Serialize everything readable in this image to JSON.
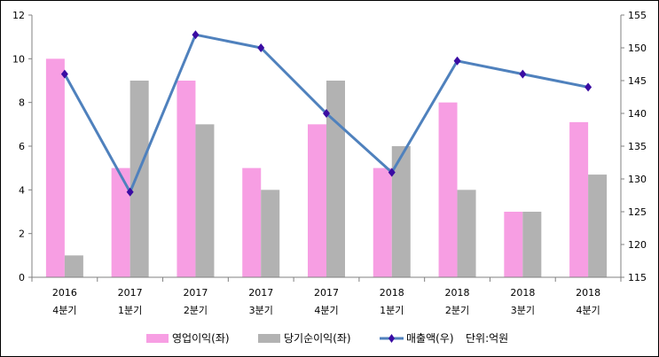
{
  "chart_data": {
    "type": "bar",
    "title": "",
    "categories": [
      [
        "2016",
        "4분기"
      ],
      [
        "2017",
        "1분기"
      ],
      [
        "2017",
        "2분기"
      ],
      [
        "2017",
        "3분기"
      ],
      [
        "2017",
        "4분기"
      ],
      [
        "2018",
        "1분기"
      ],
      [
        "2018",
        "2분기"
      ],
      [
        "2018",
        "3분기"
      ],
      [
        "2018",
        "4분기"
      ]
    ],
    "series": [
      {
        "name": "영업이익(좌)",
        "type": "bar",
        "axis": "left",
        "color": "#F79EE3",
        "values": [
          10,
          5,
          9,
          5,
          7,
          5,
          8,
          3,
          7.1
        ]
      },
      {
        "name": "당기순이익(좌)",
        "type": "bar",
        "axis": "left",
        "color": "#B2B2B2",
        "values": [
          1,
          9,
          7,
          4,
          9,
          6,
          4,
          3,
          4.7
        ]
      },
      {
        "name": "매출액(우)",
        "type": "line",
        "axis": "right",
        "color": "#4F81BD",
        "marker_color": "#3A0CA3",
        "values": [
          146,
          128,
          152,
          150,
          140,
          131,
          148,
          146,
          144
        ]
      }
    ],
    "left_axis": {
      "ylim": [
        0,
        12
      ],
      "ticks": [
        0,
        2,
        4,
        6,
        8,
        10,
        12
      ]
    },
    "right_axis": {
      "ylim": [
        115,
        155
      ],
      "ticks": [
        115,
        120,
        125,
        130,
        135,
        140,
        145,
        150,
        155
      ]
    },
    "unit_note": "단위:억원",
    "legend_position": "bottom",
    "grid": false
  }
}
